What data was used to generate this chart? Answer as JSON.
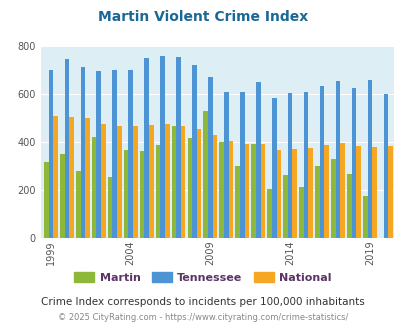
{
  "title": "Martin Violent Crime Index",
  "years": [
    1999,
    2000,
    2001,
    2002,
    2003,
    2004,
    2005,
    2006,
    2007,
    2008,
    2009,
    2010,
    2011,
    2012,
    2013,
    2014,
    2015,
    2016,
    2017,
    2018,
    2019,
    2020
  ],
  "martin": [
    315,
    350,
    280,
    420,
    255,
    365,
    360,
    385,
    465,
    415,
    530,
    400,
    300,
    390,
    205,
    260,
    210,
    300,
    330,
    265,
    175,
    0
  ],
  "tennessee": [
    700,
    745,
    715,
    695,
    700,
    700,
    750,
    760,
    755,
    720,
    670,
    610,
    610,
    650,
    585,
    605,
    610,
    635,
    655,
    625,
    660,
    600
  ],
  "national": [
    510,
    505,
    500,
    475,
    465,
    465,
    470,
    475,
    465,
    455,
    430,
    405,
    390,
    390,
    365,
    372,
    373,
    386,
    394,
    381,
    380,
    383
  ],
  "martin_color": "#8db83a",
  "tennessee_color": "#4d94d4",
  "national_color": "#f5a623",
  "bg_color": "#deeef5",
  "ylim": [
    0,
    800
  ],
  "yticks": [
    0,
    200,
    400,
    600,
    800
  ],
  "xlabel_years": [
    1999,
    2004,
    2009,
    2014,
    2019
  ],
  "legend_labels": [
    "Martin",
    "Tennessee",
    "National"
  ],
  "legend_text_color": "#5c3566",
  "subtitle": "Crime Index corresponds to incidents per 100,000 inhabitants",
  "footer": "© 2025 CityRating.com - https://www.cityrating.com/crime-statistics/",
  "title_color": "#1a6896",
  "subtitle_color": "#333333",
  "footer_color": "#888888"
}
